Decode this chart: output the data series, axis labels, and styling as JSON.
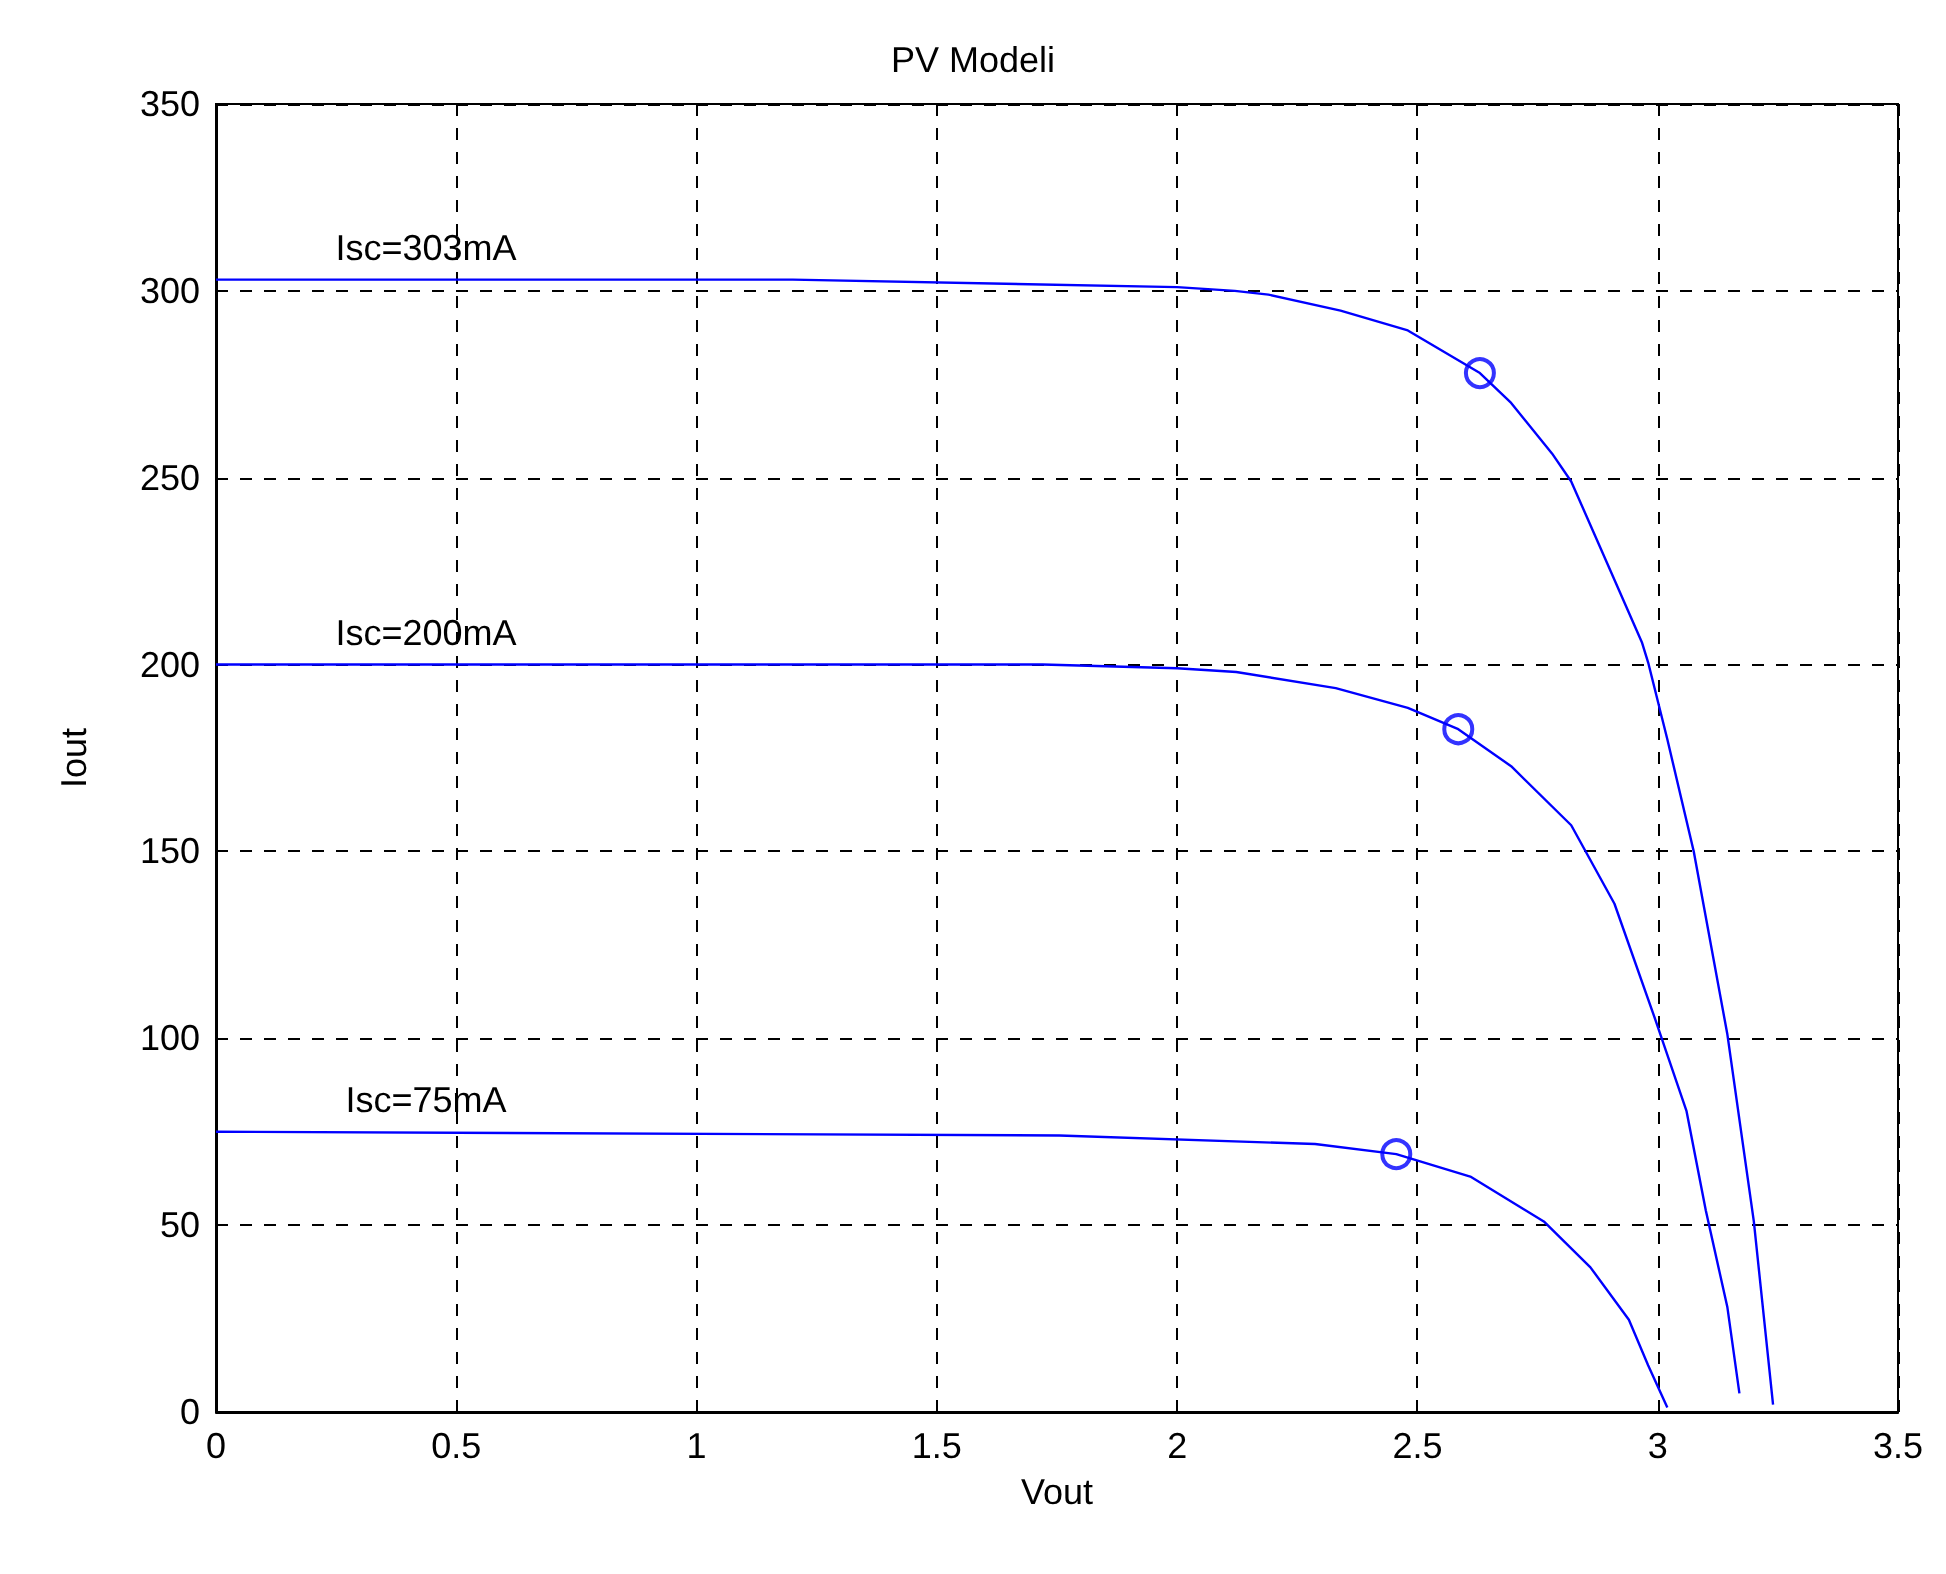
{
  "chart_data": {
    "type": "line",
    "title": "PV Modeli",
    "xlabel": "Vout",
    "ylabel": "Iout",
    "xlim": [
      0,
      3.5
    ],
    "xticks": [
      0,
      0.5,
      1,
      1.5,
      2,
      2.5,
      3,
      3.5
    ],
    "ylim": [
      0,
      350
    ],
    "yticks": [
      0,
      50,
      100,
      150,
      200,
      250,
      300,
      350
    ],
    "grid": true,
    "marker": "none",
    "line_style": "solid",
    "series": [
      {
        "name": "Isc=303mA",
        "color": "#0000ff",
        "x": [
          0,
          1.2,
          2.0,
          2.12,
          2.19,
          2.34,
          2.48,
          2.63,
          2.695,
          2.78,
          2.82,
          2.885,
          2.967,
          2.98,
          3.02,
          3.075,
          3.145,
          3.2,
          3.24
        ],
        "values": [
          303,
          303,
          301,
          300,
          299,
          294.7,
          289.4,
          278,
          270,
          256.5,
          249,
          230,
          206,
          200.6,
          180,
          150,
          101,
          51,
          2
        ]
      },
      {
        "name": "Isc=200mA",
        "color": "#0000ff",
        "x": [
          0,
          1.72,
          2.0,
          2.123,
          2.33,
          2.48,
          2.585,
          2.695,
          2.82,
          2.91,
          2.995,
          3.06,
          3.1,
          3.145,
          3.17
        ],
        "values": [
          200,
          200,
          199,
          198,
          193.7,
          188.4,
          182.7,
          172.8,
          157,
          136,
          105,
          80.5,
          54,
          28,
          5
        ]
      },
      {
        "name": "Isc=75mA",
        "color": "#0000ff",
        "x": [
          0,
          1.755,
          2.287,
          2.456,
          2.61,
          2.763,
          2.86,
          2.94,
          2.98,
          3.02
        ],
        "values": [
          75,
          74,
          71.7,
          69,
          63,
          51,
          38.7,
          24.7,
          12.5,
          1.2
        ]
      },
      {
        "type": "scatter",
        "marker": "circle",
        "color": "#0000ff",
        "x": [
          2.63,
          2.585,
          2.456
        ],
        "values": [
          278,
          182.7,
          69
        ]
      }
    ]
  }
}
